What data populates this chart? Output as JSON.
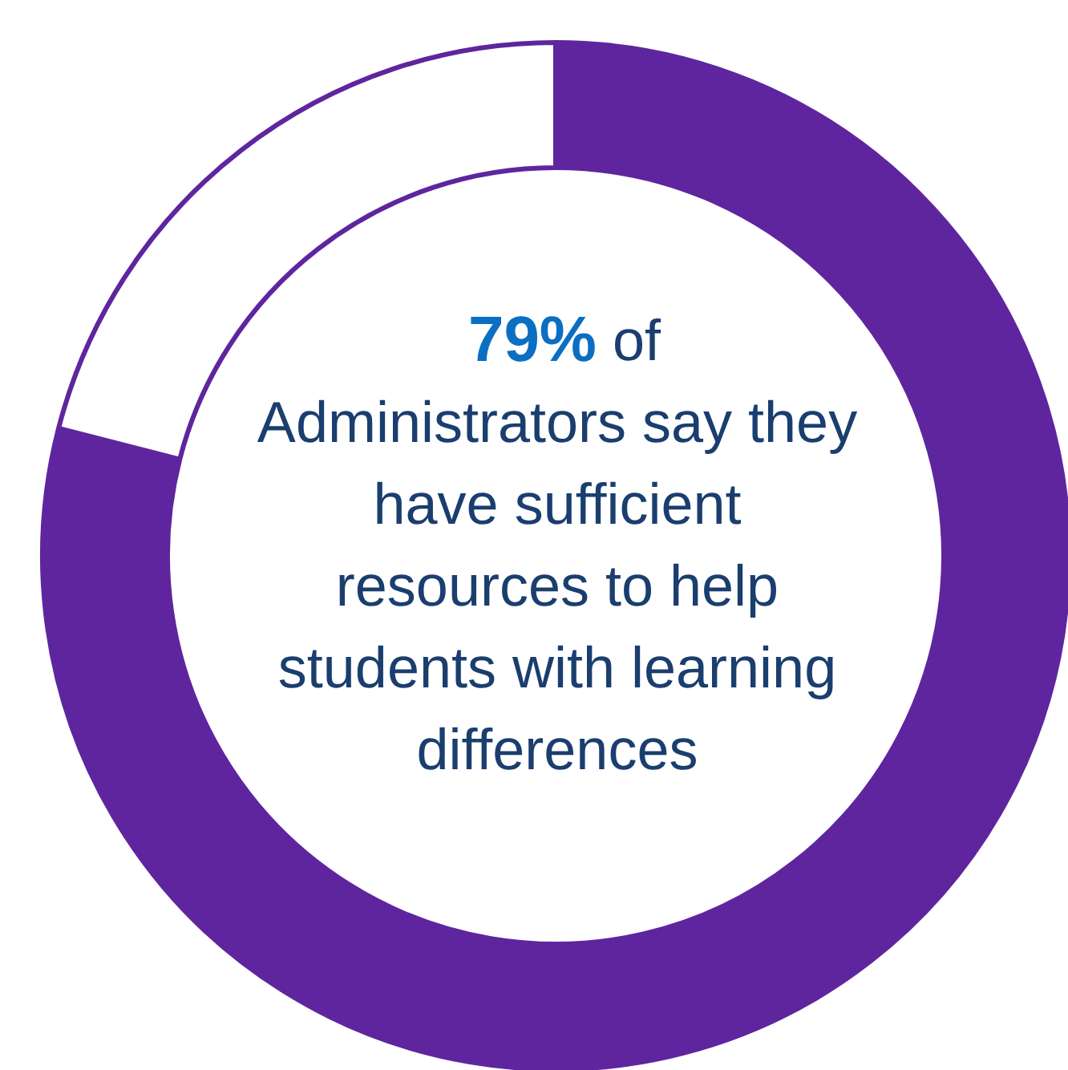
{
  "chart_data": {
    "type": "donut",
    "categories": [
      null,
      null
    ],
    "values": [
      79,
      21
    ],
    "colors": [
      "#5f259f",
      "#ffffff"
    ],
    "annotations": [
      "79% of\nAdministrators say they\nhave sufficient\nresources to help\nstudents with learning\ndifferences"
    ]
  }
}
